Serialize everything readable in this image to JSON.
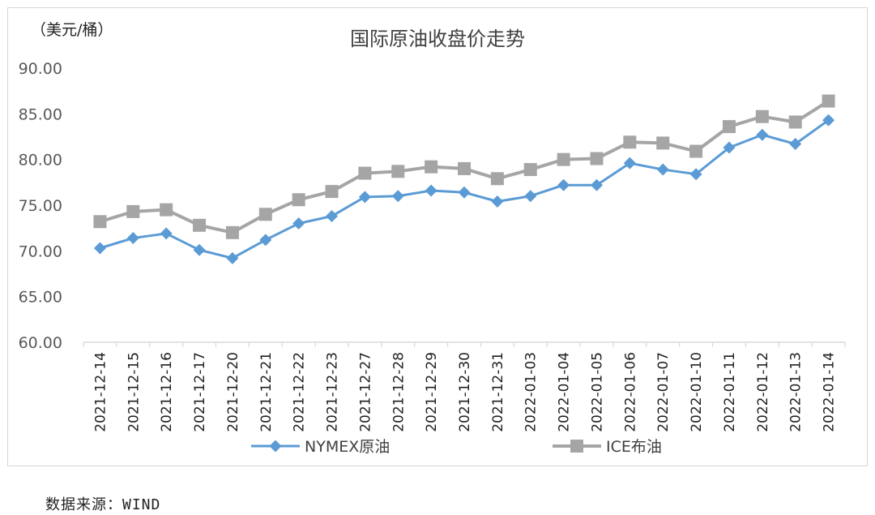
{
  "chart_data": {
    "type": "line",
    "title": "国际原油收盘价走势",
    "ylabel": "（美元/桶）",
    "xlabel": "",
    "ylim": [
      60,
      90
    ],
    "yticks": [
      "60.00",
      "65.00",
      "70.00",
      "75.00",
      "80.00",
      "85.00",
      "90.00"
    ],
    "grid": false,
    "legend_position": "bottom",
    "categories": [
      "2021-12-14",
      "2021-12-15",
      "2021-12-16",
      "2021-12-17",
      "2021-12-20",
      "2021-12-21",
      "2021-12-22",
      "2021-12-23",
      "2021-12-27",
      "2021-12-28",
      "2021-12-29",
      "2021-12-30",
      "2021-12-31",
      "2022-01-03",
      "2022-01-04",
      "2022-01-05",
      "2022-01-06",
      "2022-01-07",
      "2022-01-10",
      "2022-01-11",
      "2022-01-12",
      "2022-01-13",
      "2022-01-14"
    ],
    "series": [
      {
        "name": "NYMEX原油",
        "color": "#5B9BD5",
        "marker": "diamond",
        "values": [
          70.3,
          71.4,
          71.9,
          70.1,
          69.2,
          71.2,
          73.0,
          73.8,
          75.9,
          76.0,
          76.6,
          76.4,
          75.4,
          76.0,
          77.2,
          77.2,
          79.6,
          78.9,
          78.4,
          81.3,
          82.7,
          81.7,
          84.3
        ]
      },
      {
        "name": "ICE布油",
        "color": "#A5A5A5",
        "marker": "square",
        "values": [
          73.2,
          74.3,
          74.5,
          72.8,
          72.0,
          74.0,
          75.6,
          76.5,
          78.5,
          78.7,
          79.2,
          79.0,
          77.9,
          78.9,
          80.0,
          80.1,
          81.9,
          81.8,
          80.9,
          83.6,
          84.7,
          84.1,
          86.4
        ]
      }
    ]
  },
  "source": "数据来源：WIND"
}
